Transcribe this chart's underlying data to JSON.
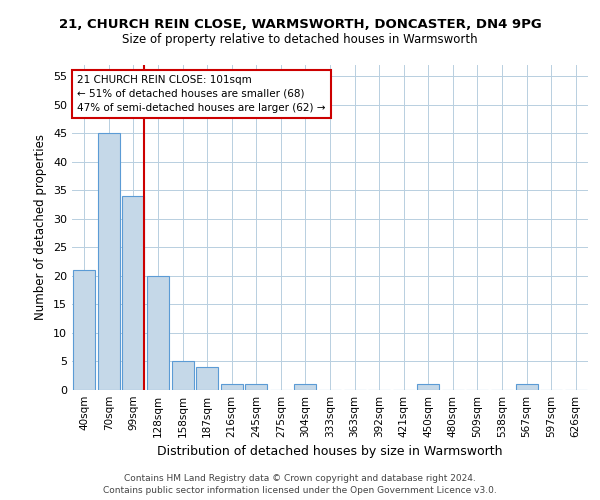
{
  "title_line1": "21, CHURCH REIN CLOSE, WARMSWORTH, DONCASTER, DN4 9PG",
  "title_line2": "Size of property relative to detached houses in Warmsworth",
  "xlabel": "Distribution of detached houses by size in Warmsworth",
  "ylabel": "Number of detached properties",
  "categories": [
    "40sqm",
    "70sqm",
    "99sqm",
    "128sqm",
    "158sqm",
    "187sqm",
    "216sqm",
    "245sqm",
    "275sqm",
    "304sqm",
    "333sqm",
    "363sqm",
    "392sqm",
    "421sqm",
    "450sqm",
    "480sqm",
    "509sqm",
    "538sqm",
    "567sqm",
    "597sqm",
    "626sqm"
  ],
  "bar_values": [
    21,
    45,
    34,
    20,
    5,
    4,
    1,
    1,
    0,
    1,
    0,
    0,
    0,
    0,
    1,
    0,
    0,
    0,
    1,
    0,
    0
  ],
  "bar_color": "#c5d8e8",
  "bar_edge_color": "#5b9bd5",
  "ylim": [
    0,
    57
  ],
  "yticks": [
    0,
    5,
    10,
    15,
    20,
    25,
    30,
    35,
    40,
    45,
    50,
    55
  ],
  "property_line_index": 2,
  "property_line_color": "#cc0000",
  "annotation_text": "21 CHURCH REIN CLOSE: 101sqm\n← 51% of detached houses are smaller (68)\n47% of semi-detached houses are larger (62) →",
  "annotation_box_color": "#cc0000",
  "footer_line1": "Contains HM Land Registry data © Crown copyright and database right 2024.",
  "footer_line2": "Contains public sector information licensed under the Open Government Licence v3.0."
}
